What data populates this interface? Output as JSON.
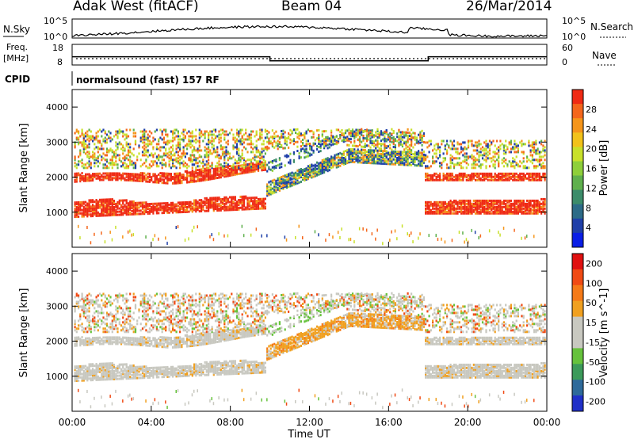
{
  "header": {
    "site": "Adak West (fitACF)",
    "beam": "Beam 04",
    "date": "26/Mar/2014"
  },
  "strips": {
    "nsky_label": "N.Sky",
    "nsearch_label": "N.Search",
    "noise_ticks_top": "10^5",
    "noise_ticks_bottom": "10^0",
    "freq_label_line1": "Freq.",
    "freq_label_line2": "[MHz]",
    "freq_ticks": [
      "18",
      "8"
    ],
    "nave_label": "Nave",
    "nave_ticks": [
      "60",
      "0"
    ],
    "cpid_label": "CPID",
    "cpid_text": "normalsound (fast) 157 RF"
  },
  "colors": {
    "power_scale": [
      "#0a1ee6",
      "#1f3fa8",
      "#2c6b87",
      "#3c8c6a",
      "#5fb04d",
      "#8ecf3a",
      "#c8e02a",
      "#f2c21a",
      "#f5951a",
      "#f4661c",
      "#ef2a14"
    ],
    "velocity_scale": [
      "#2030c8",
      "#2e6a9a",
      "#3c9a5a",
      "#66c23c",
      "#c8c8c0",
      "#c8c8c0",
      "#f0a020",
      "#f57a18",
      "#f04a14",
      "#e01010"
    ]
  },
  "chart_data": {
    "type": "heatmap",
    "x_label": "Time UT",
    "x_ticks": [
      "00:00",
      "04:00",
      "08:00",
      "12:00",
      "16:00",
      "20:00",
      "00:00"
    ],
    "x_range_hours": [
      0,
      24
    ],
    "y_label": "Slant Range [km]",
    "y_ticks": [
      1000,
      2000,
      3000,
      4000
    ],
    "y_range": [
      0,
      4500
    ],
    "panels": [
      {
        "name": "Power",
        "colorbar_label": "Power [dB]",
        "colorbar_ticks": [
          "28",
          "24",
          "20",
          "16",
          "12",
          "8",
          "4"
        ],
        "colorbar_range": [
          0,
          32
        ]
      },
      {
        "name": "Velocity",
        "colorbar_label": "Velocity [m s^-1]",
        "colorbar_ticks": [
          "200",
          "100",
          "50",
          "15",
          "-15",
          "-50",
          "-100",
          "-200"
        ]
      }
    ],
    "frequency_mhz": [
      {
        "start": 0,
        "end": 10,
        "value": 12
      },
      {
        "start": 10,
        "end": 18,
        "value": 10
      },
      {
        "start": 18,
        "end": 24,
        "value": 12
      }
    ]
  }
}
